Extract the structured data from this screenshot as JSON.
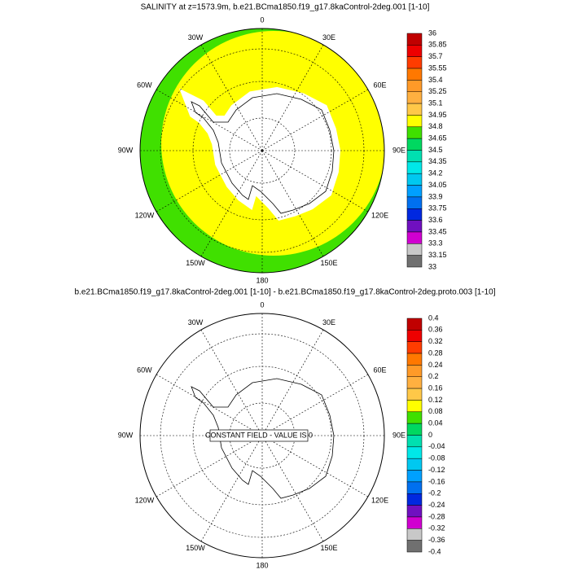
{
  "panels": [
    {
      "title": "SALINITY at z=1573.9m, b.e21.BCma1850.f19_g17.8kaControl-2deg.001 [1-10]",
      "lon_labels": [
        "0",
        "30E",
        "60E",
        "90E",
        "120E",
        "150E",
        "180",
        "150W",
        "120W",
        "90W",
        "60W",
        "30W"
      ],
      "colorbar": {
        "labels": [
          36,
          35.85,
          35.7,
          35.55,
          35.4,
          35.25,
          35.1,
          34.95,
          34.8,
          34.65,
          34.5,
          34.35,
          34.2,
          34.05,
          33.9,
          33.75,
          33.6,
          33.45,
          33.3,
          33.15,
          33
        ]
      }
    },
    {
      "title": "b.e21.BCma1850.f19_g17.8kaControl-2deg.001 [1-10] - b.e21.BCma1850.f19_g17.8kaControl-2deg.proto.003 [1-10]",
      "lon_labels": [
        "0",
        "30E",
        "60E",
        "90E",
        "120E",
        "150E",
        "180",
        "150W",
        "120W",
        "90W",
        "60W",
        "30W"
      ],
      "colorbar": {
        "labels": [
          0.4,
          0.36,
          0.32,
          0.28,
          0.24,
          0.2,
          0.16,
          0.12,
          0.08,
          0.04,
          0,
          -0.04,
          -0.08,
          -0.12,
          -0.16,
          -0.2,
          -0.24,
          -0.28,
          -0.32,
          -0.36,
          -0.4
        ]
      },
      "note": "CONSTANT FIELD - VALUE IS 0"
    }
  ],
  "colorbar_colors": [
    "#c00000",
    "#ee0000",
    "#ff3c00",
    "#ff7800",
    "#ff9a28",
    "#ffb040",
    "#ffc848",
    "#ffff00",
    "#40e000",
    "#00d860",
    "#00e0b0",
    "#00e8e8",
    "#00c8f0",
    "#00a0ff",
    "#0070f0",
    "#0028e0",
    "#7010c0",
    "#d000d0",
    "#c8c8c8",
    "#707070"
  ]
}
